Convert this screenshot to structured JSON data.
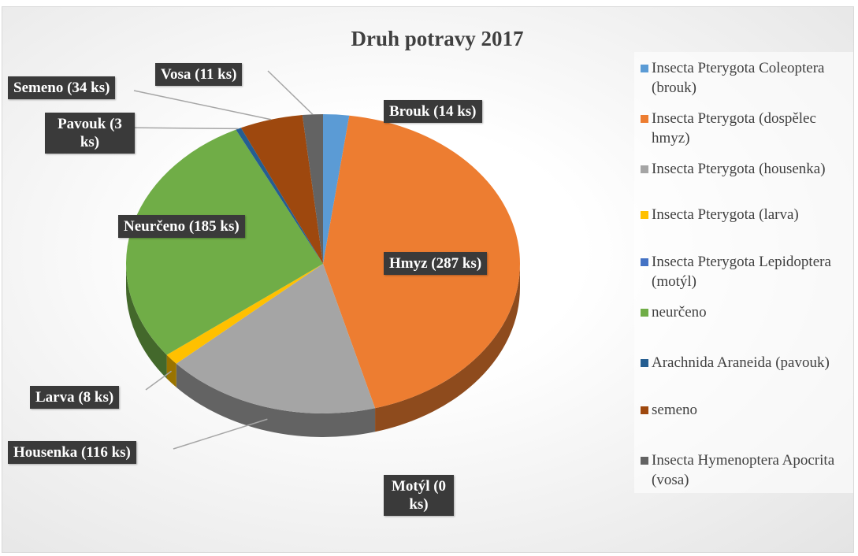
{
  "chart_data": {
    "type": "pie",
    "title": "Druh potravy 2017",
    "categories": [
      "Insecta Pterygota Coleoptera (brouk)",
      "Insecta Pterygota (dospělec hmyz)",
      "Insecta Pterygota (housenka)",
      "Insecta Pterygota (larva)",
      "Insecta Pterygota Lepidoptera (motýl)",
      "neurčeno",
      "Arachnida Araneida (pavouk)",
      "semeno",
      "Insecta Hymenoptera Apocrita (vosa)"
    ],
    "values": [
      14,
      287,
      116,
      8,
      0,
      185,
      3,
      34,
      11
    ],
    "value_labels": [
      "Brouk (14 ks)",
      "Hmyz (287 ks)",
      "Housenka (116 ks)",
      "Larva (8 ks)",
      "Motýl (0 ks)",
      "Neurčeno (185 ks)",
      "Pavouk (3 ks)",
      "Semeno (34 ks)",
      "Vosa (11 ks)"
    ],
    "colors": [
      "#5b9bd5",
      "#ed7d31",
      "#a5a5a5",
      "#ffc000",
      "#4472c4",
      "#70ad47",
      "#255e91",
      "#9e480e",
      "#636363"
    ],
    "legend": "right"
  }
}
